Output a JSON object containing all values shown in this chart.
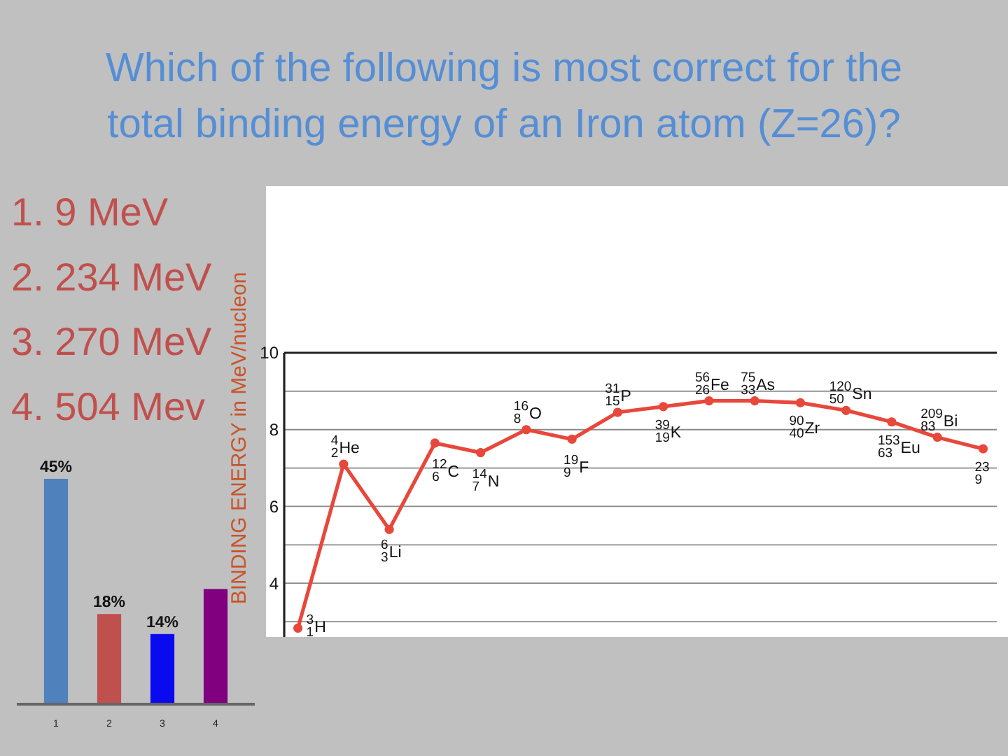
{
  "chart_data": [
    {
      "type": "other",
      "title": "Which of the following is most correct for the total binding energy of an Iron atom (Z=26)?",
      "annotations": [
        "1. 9 MeV",
        "2. 234 MeV",
        "3. 270 MeV",
        "4. 504 Mev"
      ]
    },
    {
      "type": "line",
      "ylabel": "BINDING ENERGY in MeV/nucleon",
      "categories": [
        null,
        null,
        null,
        null,
        null,
        null,
        null,
        null,
        null,
        null,
        null,
        null,
        null,
        null,
        null,
        null
      ],
      "series": [
        {
          "color": "#e8473b",
          "values": [
            2.83,
            7.1,
            5.4,
            7.65,
            7.4,
            8.0,
            7.75,
            8.45,
            8.6,
            8.75,
            8.75,
            8.7,
            8.5,
            8.2,
            7.8,
            7.5
          ]
        }
      ],
      "ylim": [
        2.6,
        10
      ],
      "yticks": [
        10,
        {
          "value": 9,
          "label": null
        },
        8,
        {
          "value": 7,
          "label": null
        },
        6,
        {
          "value": 5,
          "label": null
        },
        4,
        {
          "value": 3,
          "label": null
        }
      ],
      "grid": "y",
      "marker": "circle",
      "tick_labels": "y",
      "annotations": [
        "$^{3}$$_{1}$H",
        {
          "text": "$^{4}$$_{2}$He",
          "y": 7.1
        },
        {
          "text": "$^{6}$$_{3}$Li",
          "y": 5.4
        },
        {
          "text": "$^{12}$$_{6}$C",
          "y": 7.65
        },
        {
          "text": "$^{14}$$_{7}$N",
          "y": 7.4
        },
        {
          "text": "$^{16}$$_{8}$O",
          "y": 8.0
        },
        {
          "text": "$^{19}$$_{9}$F",
          "y": 7.75
        },
        {
          "text": "$^{31}$$_{15}$P",
          "y": 8.45
        },
        {
          "text": "$^{39}$$_{19}$K",
          "y": 8.6
        },
        {
          "text": "$^{56}$$_{26}$Fe",
          "y": 8.75
        },
        {
          "text": "$^{75}$$_{33}$As",
          "y": 8.75
        },
        {
          "text": "$^{90}$$_{40}$Zr",
          "y": 8.7
        },
        {
          "text": "$^{120}$$_{50}$Sn",
          "y": 8.5
        },
        {
          "text": "$^{153}$$_{63}$Eu",
          "y": 8.2
        },
        {
          "text": "$^{209}$$_{83}$Bi",
          "y": 7.8
        },
        {
          "text": "$^{23}$$_{9}$",
          "y": 7.5
        }
      ]
    },
    {
      "type": "bar",
      "categories": [
        "1",
        "2",
        "3",
        "4"
      ],
      "values": [
        45,
        18,
        14,
        23
      ],
      "colors": [
        "#4f81bd",
        "#c0504d",
        "#0a0af0",
        "#800080"
      ],
      "value_labels": [
        "45%",
        "18%",
        "14%",
        null
      ]
    }
  ]
}
